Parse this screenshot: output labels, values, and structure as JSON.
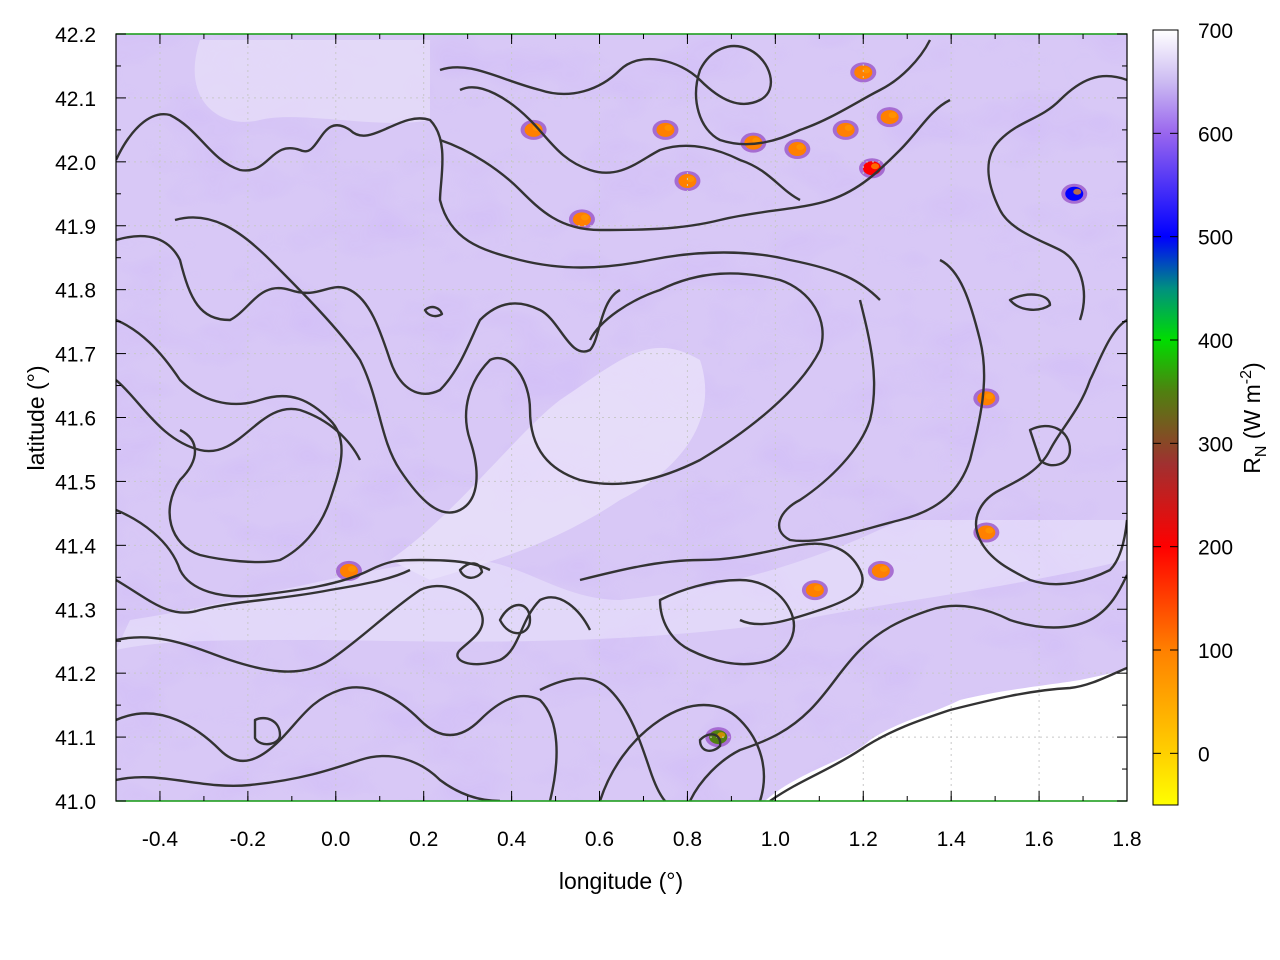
{
  "chart_data": {
    "type": "heatmap",
    "xlabel": "longitude (°)",
    "ylabel": "latitude (°)",
    "xlim": [
      -0.5,
      1.8
    ],
    "ylim": [
      41.0,
      42.2
    ],
    "x_ticks": [
      "-0.4",
      "-0.2",
      "0.0",
      "0.2",
      "0.4",
      "0.6",
      "0.8",
      "1.0",
      "1.2",
      "1.4",
      "1.6",
      "1.8"
    ],
    "y_ticks": [
      "41.0",
      "41.1",
      "41.2",
      "41.3",
      "41.4",
      "41.5",
      "41.6",
      "41.7",
      "41.8",
      "41.9",
      "42.0",
      "42.1",
      "42.2"
    ],
    "colorbar": {
      "label_main": "R",
      "label_sub": "N",
      "label_unit_pre": " (W m",
      "label_unit_sup": "-2",
      "label_unit_post": ")",
      "range": [
        -50,
        700
      ],
      "ticks": [
        "700",
        "600",
        "500",
        "400",
        "300",
        "200",
        "100",
        "0"
      ],
      "colors": [
        {
          "value": -50,
          "color": "#ffff00"
        },
        {
          "value": 0,
          "color": "#ffd000"
        },
        {
          "value": 100,
          "color": "#ff8000"
        },
        {
          "value": 200,
          "color": "#ff0000"
        },
        {
          "value": 280,
          "color": "#a03030"
        },
        {
          "value": 350,
          "color": "#508010"
        },
        {
          "value": 400,
          "color": "#00dd00"
        },
        {
          "value": 450,
          "color": "#009080"
        },
        {
          "value": 500,
          "color": "#0000ff"
        },
        {
          "value": 600,
          "color": "#9966ee"
        },
        {
          "value": 650,
          "color": "#ccbbf2"
        },
        {
          "value": 700,
          "color": "#ffffff"
        }
      ]
    },
    "field_description_values": {
      "background_mean": 640,
      "hotspots": [
        {
          "lon": 0.45,
          "lat": 42.05,
          "value": 20
        },
        {
          "lon": 0.75,
          "lat": 42.05,
          "value": 40
        },
        {
          "lon": 0.95,
          "lat": 42.03,
          "value": 30
        },
        {
          "lon": 1.05,
          "lat": 42.02,
          "value": 20
        },
        {
          "lon": 1.16,
          "lat": 42.05,
          "value": 20
        },
        {
          "lon": 1.22,
          "lat": 41.99,
          "value": 120
        },
        {
          "lon": 1.26,
          "lat": 42.07,
          "value": 20
        },
        {
          "lon": 1.2,
          "lat": 42.14,
          "value": 20
        },
        {
          "lon": 0.8,
          "lat": 41.97,
          "value": 20
        },
        {
          "lon": 1.68,
          "lat": 41.95,
          "value": 480
        },
        {
          "lon": 1.48,
          "lat": 41.63,
          "value": 30
        },
        {
          "lon": 1.24,
          "lat": 41.36,
          "value": 30
        },
        {
          "lon": 0.03,
          "lat": 41.36,
          "value": 60
        },
        {
          "lon": 1.48,
          "lat": 41.42,
          "value": 80
        },
        {
          "lon": 1.09,
          "lat": 41.33,
          "value": 60
        },
        {
          "lon": 0.87,
          "lat": 41.1,
          "value": 300
        },
        {
          "lon": 0.56,
          "lat": 41.91,
          "value": 100
        }
      ]
    }
  }
}
